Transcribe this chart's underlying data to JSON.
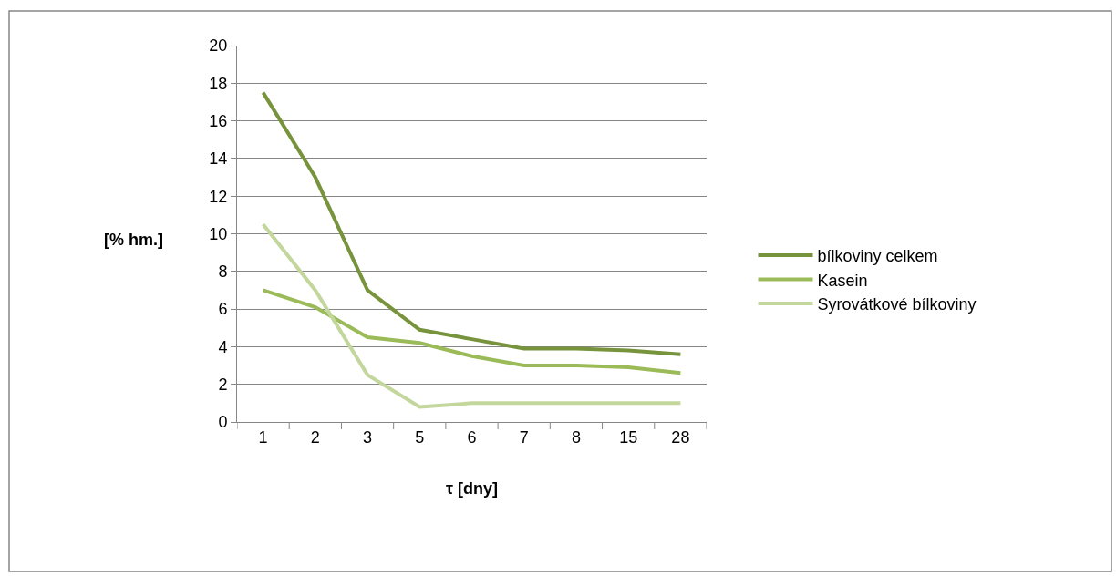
{
  "chart_data": {
    "type": "line",
    "categories": [
      "1",
      "2",
      "3",
      "5",
      "6",
      "7",
      "8",
      "15",
      "28"
    ],
    "series": [
      {
        "name": "bílkoviny celkem",
        "color": "#77933c",
        "values": [
          17.5,
          13.0,
          7.0,
          4.9,
          4.4,
          3.9,
          3.9,
          3.8,
          3.6
        ]
      },
      {
        "name": "Kasein",
        "color": "#9bbb59",
        "values": [
          7.0,
          6.1,
          4.5,
          4.2,
          3.5,
          3.0,
          3.0,
          2.9,
          2.6
        ]
      },
      {
        "name": "Syrovátkové bílkoviny",
        "color": "#c3d69b",
        "values": [
          10.5,
          7.0,
          2.5,
          0.8,
          1.0,
          1.0,
          1.0,
          1.0,
          1.0
        ]
      }
    ],
    "xlabel": "τ [dny]",
    "ylabel": "[% hm.]",
    "ylim": [
      0,
      20
    ],
    "yticks": [
      0,
      2,
      4,
      6,
      8,
      10,
      12,
      14,
      16,
      18,
      20
    ],
    "grid": "y",
    "legend": "right",
    "marker": "none",
    "line_style": "solid"
  }
}
